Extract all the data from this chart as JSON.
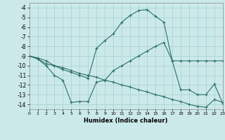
{
  "xlabel": "Humidex (Indice chaleur)",
  "background_color": "#cce9e9",
  "grid_color": "#aad4d4",
  "line_color": "#2a7068",
  "xlim": [
    0,
    23
  ],
  "ylim": [
    -14.5,
    -3.5
  ],
  "yticks": [
    -4,
    -5,
    -6,
    -7,
    -8,
    -9,
    -10,
    -11,
    -12,
    -13,
    -14
  ],
  "xticks": [
    0,
    1,
    2,
    3,
    4,
    5,
    6,
    7,
    8,
    9,
    10,
    11,
    12,
    13,
    14,
    15,
    16,
    17,
    18,
    19,
    20,
    21,
    22,
    23
  ],
  "line_upper_x": [
    0,
    1,
    2,
    3,
    4,
    5,
    6,
    7,
    8,
    9,
    10,
    11,
    12,
    13,
    14,
    15,
    16,
    17,
    18,
    19,
    20,
    21,
    22,
    23
  ],
  "line_upper_y": [
    -9.0,
    -9.3,
    -9.8,
    -10.0,
    -10.4,
    -10.7,
    -11.0,
    -11.3,
    -8.2,
    -7.4,
    -6.7,
    -5.5,
    -4.8,
    -4.3,
    -4.2,
    -4.9,
    -5.5,
    -9.5,
    -9.5,
    -9.5,
    -9.5,
    -9.5,
    -9.5,
    -9.5
  ],
  "line_mid_x": [
    0,
    1,
    2,
    3,
    4,
    5,
    6,
    7,
    8,
    9,
    10,
    11,
    12,
    13,
    14,
    15,
    16,
    17,
    18,
    19,
    20,
    21,
    22,
    23
  ],
  "line_mid_y": [
    -9.0,
    -9.2,
    -9.5,
    -10.0,
    -10.2,
    -10.5,
    -10.8,
    -11.0,
    -11.2,
    -11.5,
    -11.7,
    -12.0,
    -12.2,
    -12.5,
    -12.7,
    -13.0,
    -13.2,
    -13.5,
    -13.7,
    -14.0,
    -14.2,
    -14.3,
    -13.5,
    -13.8
  ],
  "line_lower_x": [
    0,
    1,
    2,
    3,
    4,
    5,
    6,
    7,
    8,
    9,
    10,
    11,
    12,
    13,
    14,
    15,
    16,
    17,
    18,
    19,
    20,
    21,
    22,
    23
  ],
  "line_lower_y": [
    -9.0,
    -9.3,
    -10.0,
    -11.0,
    -11.5,
    -13.8,
    -13.7,
    -13.7,
    -11.7,
    -11.5,
    -10.5,
    -10.0,
    -9.5,
    -9.0,
    -8.5,
    -8.0,
    -7.6,
    -9.5,
    -12.5,
    -12.5,
    -13.0,
    -13.0,
    -11.9,
    -13.9
  ]
}
